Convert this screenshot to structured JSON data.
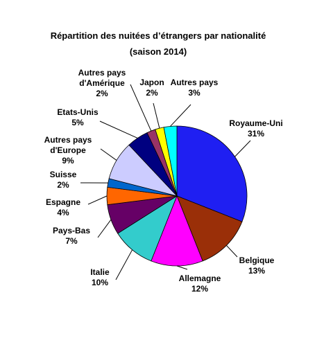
{
  "chart_data": {
    "type": "pie",
    "title": "Répartition des nuitées d’étrangers par nationalité",
    "subtitle": "(saison 2014)",
    "slices": [
      {
        "label": [
          "Royaume-Uni"
        ],
        "value_label": "31%",
        "value": 31,
        "color": "#1f1ff2"
      },
      {
        "label": [
          "Belgique"
        ],
        "value_label": "13%",
        "value": 13,
        "color": "#9a2f08"
      },
      {
        "label": [
          "Allemagne"
        ],
        "value_label": "12%",
        "value": 12,
        "color": "#ff00ff"
      },
      {
        "label": [
          "Italie"
        ],
        "value_label": "10%",
        "value": 10,
        "color": "#33cccc"
      },
      {
        "label": [
          "Pays-Bas"
        ],
        "value_label": "7%",
        "value": 7,
        "color": "#660066"
      },
      {
        "label": [
          "Espagne"
        ],
        "value_label": "4%",
        "value": 4,
        "color": "#ff6600"
      },
      {
        "label": [
          "Suisse"
        ],
        "value_label": "2%",
        "value": 2,
        "color": "#0066cc"
      },
      {
        "label": [
          "Autres pays",
          "d'Europe"
        ],
        "value_label": "9%",
        "value": 9,
        "color": "#ccccff"
      },
      {
        "label": [
          "Etats-Unis"
        ],
        "value_label": "5%",
        "value": 5,
        "color": "#000080"
      },
      {
        "label": [
          "Autres pays",
          "d'Amérique"
        ],
        "value_label": "2%",
        "value": 2,
        "color": "#993366"
      },
      {
        "label": [
          "Japon"
        ],
        "value_label": "2%",
        "value": 2,
        "color": "#ffff00"
      },
      {
        "label": [
          "Autres pays"
        ],
        "value_label": "3%",
        "value": 3,
        "color": "#00ffff"
      }
    ]
  }
}
